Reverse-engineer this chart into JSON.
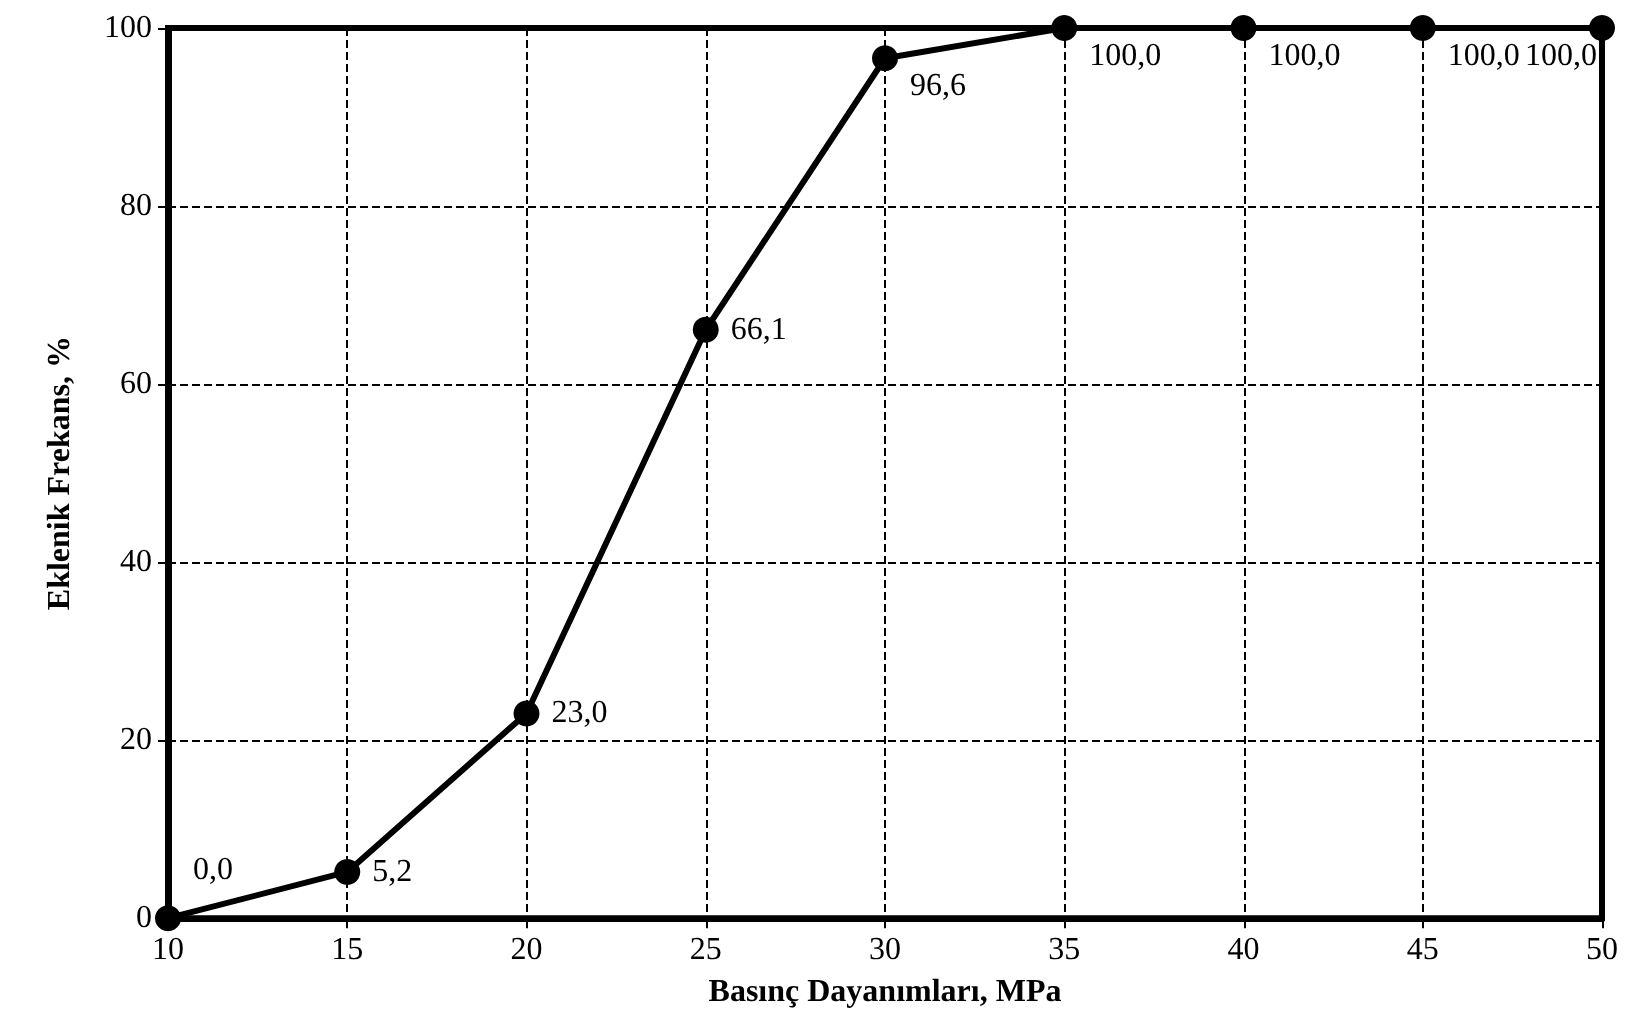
{
  "chart_data": {
    "type": "line",
    "xlabel": "Basınç Dayanımları, MPa",
    "ylabel": "Eklenik Frekans, %",
    "x": [
      10,
      15,
      20,
      25,
      30,
      35,
      40,
      45,
      50
    ],
    "series": [
      {
        "color": "#000000",
        "values": [
          0,
          5.2,
          23,
          66.1,
          96.6,
          100,
          100,
          100,
          100
        ],
        "value_labels": [
          "0,0",
          "5,2",
          "23,0",
          "66,1",
          "96,6",
          "100,0",
          "100,0",
          "100,0",
          "100,0"
        ]
      }
    ],
    "xlim": [
      10,
      50
    ],
    "xticks": [
      10,
      15,
      20,
      25,
      30,
      35,
      40,
      45,
      50
    ],
    "ylim": [
      0,
      100
    ],
    "yticks": [
      0,
      20,
      40,
      60,
      80,
      100
    ],
    "grid": true,
    "marker": "circle",
    "line_style": "solid"
  }
}
